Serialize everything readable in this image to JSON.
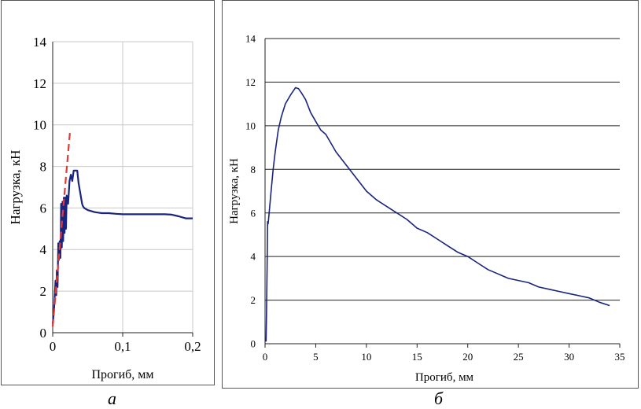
{
  "chart_data": [
    {
      "type": "line",
      "panel_label": "а",
      "xlabel": "Прогиб, мм",
      "ylabel": "Нагрузка, кН",
      "xlim": [
        0,
        0.2
      ],
      "ylim": [
        0,
        14
      ],
      "x_ticks": [
        {
          "v": 0,
          "label": "0"
        },
        {
          "v": 0.1,
          "label": "0,1"
        },
        {
          "v": 0.2,
          "label": "0,2"
        }
      ],
      "y_ticks": [
        0,
        2,
        4,
        6,
        8,
        10,
        12,
        14
      ],
      "grid": {
        "horizontal": true,
        "vertical": true
      },
      "colors": {
        "main": "#1a237e",
        "dashed": "#e53935"
      },
      "series": [
        {
          "style": "solid",
          "x": [
            0.0,
            0.002,
            0.004,
            0.005,
            0.006,
            0.007,
            0.008,
            0.009,
            0.01,
            0.011,
            0.012,
            0.013,
            0.014,
            0.015,
            0.016,
            0.017,
            0.018,
            0.019,
            0.02,
            0.022,
            0.024,
            0.026,
            0.028,
            0.03,
            0.032,
            0.035,
            0.037,
            0.038,
            0.039,
            0.04,
            0.041,
            0.042,
            0.043,
            0.045,
            0.05,
            0.06,
            0.07,
            0.08,
            0.09,
            0.1,
            0.11,
            0.12,
            0.13,
            0.14,
            0.15,
            0.16,
            0.17,
            0.18,
            0.19,
            0.2
          ],
          "y": [
            0.4,
            1.2,
            2.5,
            1.8,
            3.0,
            2.2,
            4.3,
            3.5,
            4.4,
            3.6,
            6.2,
            4.1,
            6.3,
            4.4,
            6.5,
            4.8,
            6.5,
            5.0,
            6.6,
            6.2,
            7.3,
            7.6,
            7.3,
            7.8,
            7.8,
            7.8,
            7.2,
            7.0,
            6.8,
            6.6,
            6.4,
            6.2,
            6.1,
            6.0,
            5.9,
            5.8,
            5.75,
            5.75,
            5.72,
            5.7,
            5.7,
            5.7,
            5.7,
            5.7,
            5.7,
            5.7,
            5.68,
            5.6,
            5.5,
            5.5
          ]
        },
        {
          "style": "dashed",
          "x": [
            0.0,
            0.025
          ],
          "y": [
            0.3,
            9.8
          ]
        }
      ]
    },
    {
      "type": "line",
      "panel_label": "б",
      "xlabel": "Прогиб, мм",
      "ylabel": "Нагрузка, кН",
      "xlim": [
        0,
        35
      ],
      "ylim": [
        0,
        14
      ],
      "x_ticks": [
        {
          "v": 0,
          "label": "0"
        },
        {
          "v": 5,
          "label": "5"
        },
        {
          "v": 10,
          "label": "10"
        },
        {
          "v": 15,
          "label": "15"
        },
        {
          "v": 20,
          "label": "20"
        },
        {
          "v": 25,
          "label": "25"
        },
        {
          "v": 30,
          "label": "30"
        },
        {
          "v": 35,
          "label": "35"
        }
      ],
      "y_ticks": [
        0,
        2,
        4,
        6,
        8,
        10,
        12,
        14
      ],
      "grid": {
        "horizontal": true,
        "vertical": false
      },
      "colors": {
        "main": "#1a237e"
      },
      "series": [
        {
          "style": "solid",
          "x": [
            0.1,
            0.15,
            0.2,
            0.25,
            0.3,
            0.4,
            0.6,
            0.8,
            1.0,
            1.3,
            1.6,
            2.0,
            2.5,
            3.0,
            3.3,
            3.6,
            4.0,
            4.5,
            5.0,
            5.5,
            6.0,
            7.0,
            8.0,
            9.0,
            10.0,
            11.0,
            12.0,
            13.0,
            14.0,
            15.0,
            16.0,
            17.0,
            18.0,
            19.0,
            20.0,
            21.0,
            22.0,
            23.0,
            24.0,
            25.0,
            26.0,
            27.0,
            28.0,
            29.0,
            30.0,
            31.0,
            32.0,
            33.0,
            34.0
          ],
          "y": [
            0.1,
            1.5,
            3.5,
            5.6,
            5.5,
            6.0,
            7.0,
            8.0,
            8.8,
            9.8,
            10.4,
            11.0,
            11.4,
            11.75,
            11.7,
            11.5,
            11.2,
            10.6,
            10.2,
            9.8,
            9.6,
            8.8,
            8.2,
            7.6,
            7.0,
            6.6,
            6.3,
            6.0,
            5.7,
            5.3,
            5.1,
            4.8,
            4.5,
            4.2,
            4.0,
            3.7,
            3.4,
            3.2,
            3.0,
            2.9,
            2.8,
            2.6,
            2.5,
            2.4,
            2.3,
            2.2,
            2.1,
            1.9,
            1.75
          ]
        }
      ]
    }
  ]
}
